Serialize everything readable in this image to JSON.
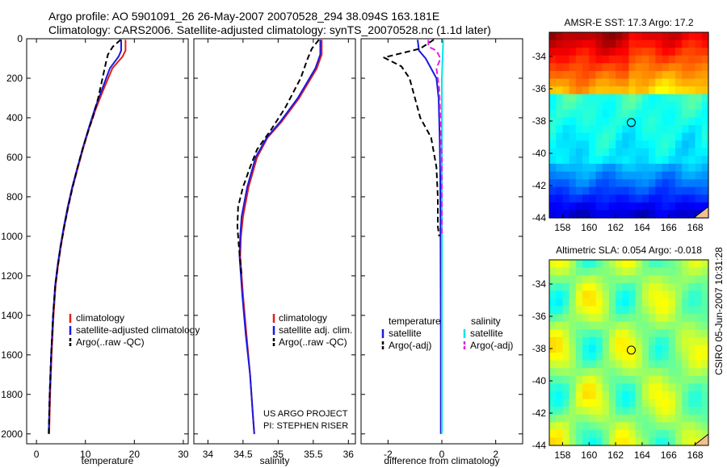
{
  "header": {
    "line1": "Argo profile: AO 5901091_26 26-May-2007 20070528_294 38.094S 163.181E",
    "line2": "Climatology: CARS2006. Satellite-adjusted climatology: synTS_20070528.nc (1.1d later)"
  },
  "colors": {
    "climatology": "#e02020",
    "satellite": "#1a1ae0",
    "argo": "#000000",
    "sat_salinity": "#00e5ee",
    "argo_adj_salinity": "#e020e0"
  },
  "chart_data": [
    {
      "type": "line",
      "id": "temperature",
      "xlabel": "temperature",
      "xlim": [
        -2,
        31
      ],
      "xticks": [
        0,
        10,
        20,
        30
      ],
      "ylim": [
        2050,
        0
      ],
      "yticks": [
        0,
        200,
        400,
        600,
        800,
        1000,
        1200,
        1400,
        1600,
        1800,
        2000
      ],
      "series": [
        {
          "name": "climatology",
          "style": "solid",
          "color_key": "climatology",
          "points": [
            [
              18.2,
              5
            ],
            [
              18.2,
              60
            ],
            [
              17.6,
              90
            ],
            [
              15.5,
              150
            ],
            [
              13.8,
              250
            ],
            [
              12.2,
              350
            ],
            [
              10.8,
              450
            ],
            [
              9.6,
              550
            ],
            [
              8.5,
              650
            ],
            [
              7.4,
              750
            ],
            [
              6.5,
              850
            ],
            [
              5.7,
              950
            ],
            [
              5.0,
              1050
            ],
            [
              4.4,
              1150
            ],
            [
              3.9,
              1250
            ],
            [
              3.5,
              1400
            ],
            [
              3.1,
              1600
            ],
            [
              2.8,
              1800
            ],
            [
              2.6,
              2000
            ]
          ]
        },
        {
          "name": "satellite-adjusted climatology",
          "style": "solid",
          "color_key": "satellite",
          "points": [
            [
              17.3,
              5
            ],
            [
              17.3,
              60
            ],
            [
              16.8,
              90
            ],
            [
              15.0,
              150
            ],
            [
              13.5,
              250
            ],
            [
              12.0,
              350
            ],
            [
              10.7,
              450
            ],
            [
              9.5,
              550
            ],
            [
              8.4,
              650
            ],
            [
              7.3,
              750
            ],
            [
              6.4,
              850
            ],
            [
              5.6,
              950
            ],
            [
              4.9,
              1050
            ],
            [
              4.3,
              1150
            ],
            [
              3.8,
              1250
            ],
            [
              3.4,
              1400
            ],
            [
              3.0,
              1600
            ],
            [
              2.7,
              1800
            ],
            [
              2.5,
              2000
            ]
          ]
        },
        {
          "name": "Argo(..raw -QC)",
          "style": "dashed",
          "color_key": "argo",
          "points": [
            [
              17.2,
              5
            ],
            [
              15.6,
              40
            ],
            [
              14.6,
              80
            ],
            [
              14.2,
              120
            ],
            [
              13.5,
              200
            ],
            [
              12.6,
              300
            ],
            [
              11.5,
              400
            ],
            [
              10.4,
              480
            ],
            [
              9.4,
              560
            ],
            [
              8.3,
              660
            ],
            [
              7.3,
              760
            ],
            [
              6.4,
              860
            ],
            [
              5.6,
              960
            ],
            [
              4.9,
              1060
            ],
            [
              4.3,
              1160
            ],
            [
              3.8,
              1260
            ],
            [
              3.4,
              1400
            ],
            [
              3.0,
              1600
            ],
            [
              2.7,
              1800
            ],
            [
              2.5,
              2000
            ]
          ]
        }
      ],
      "legend": {
        "position": "lower-right",
        "entries": [
          "climatology",
          "satellite-adjusted climatology",
          "Argo(..raw -QC)"
        ]
      }
    },
    {
      "type": "line",
      "id": "salinity",
      "xlabel": "salinity",
      "xlim": [
        33.8,
        36.1
      ],
      "xticks": [
        34,
        34.5,
        35,
        35.5,
        36
      ],
      "ylim": [
        2050,
        0
      ],
      "series": [
        {
          "name": "climatology",
          "style": "solid",
          "color_key": "climatology",
          "points": [
            [
              35.62,
              5
            ],
            [
              35.62,
              80
            ],
            [
              35.55,
              150
            ],
            [
              35.3,
              300
            ],
            [
              35.05,
              420
            ],
            [
              34.85,
              500
            ],
            [
              34.7,
              600
            ],
            [
              34.58,
              750
            ],
            [
              34.5,
              900
            ],
            [
              34.47,
              1000
            ],
            [
              34.46,
              1100
            ],
            [
              34.5,
              1300
            ],
            [
              34.55,
              1500
            ],
            [
              34.6,
              1700
            ],
            [
              34.64,
              1900
            ],
            [
              34.66,
              2000
            ]
          ]
        },
        {
          "name": "satellite adj. clim.",
          "style": "solid",
          "color_key": "satellite",
          "points": [
            [
              35.6,
              5
            ],
            [
              35.6,
              80
            ],
            [
              35.53,
              150
            ],
            [
              35.28,
              300
            ],
            [
              35.03,
              420
            ],
            [
              34.84,
              500
            ],
            [
              34.68,
              600
            ],
            [
              34.56,
              750
            ],
            [
              34.48,
              900
            ],
            [
              34.46,
              1000
            ],
            [
              34.45,
              1100
            ],
            [
              34.49,
              1300
            ],
            [
              34.54,
              1500
            ],
            [
              34.6,
              1700
            ],
            [
              34.64,
              1900
            ],
            [
              34.66,
              2000
            ]
          ]
        },
        {
          "name": "Argo(..raw -QC)",
          "style": "dashed",
          "color_key": "argo",
          "points": [
            [
              35.58,
              5
            ],
            [
              35.48,
              50
            ],
            [
              35.42,
              100
            ],
            [
              35.32,
              200
            ],
            [
              35.1,
              350
            ],
            [
              34.9,
              460
            ],
            [
              34.7,
              560
            ],
            [
              34.6,
              650
            ],
            [
              34.5,
              750
            ],
            [
              34.43,
              850
            ],
            [
              34.42,
              950
            ],
            [
              34.44,
              1050
            ],
            [
              34.48,
              1200
            ]
          ]
        }
      ],
      "legend": {
        "position": "lower-right",
        "entries": [
          "climatology",
          "satellite adj. clim.",
          "Argo(..raw -QC)"
        ]
      },
      "annotation": [
        "US ARGO PROJECT",
        "PI: STEPHEN RISER"
      ]
    },
    {
      "type": "line",
      "id": "difference",
      "xlabel": "difference from climatology",
      "xlim": [
        -3,
        3
      ],
      "xticks": [
        -2,
        0,
        2
      ],
      "ylim": [
        2050,
        0
      ],
      "series": [
        {
          "name": "temperature satellite",
          "style": "solid",
          "color_key": "satellite",
          "points": [
            [
              -0.9,
              5
            ],
            [
              -0.85,
              60
            ],
            [
              -0.6,
              100
            ],
            [
              -0.2,
              200
            ],
            [
              -0.12,
              300
            ],
            [
              -0.08,
              500
            ],
            [
              -0.06,
              700
            ],
            [
              -0.05,
              1000
            ],
            [
              -0.04,
              1500
            ],
            [
              -0.04,
              2000
            ]
          ]
        },
        {
          "name": "temperature Argo(-adj)",
          "style": "dashed",
          "color_key": "argo",
          "points": [
            [
              -0.3,
              5
            ],
            [
              -0.8,
              50
            ],
            [
              -2.15,
              95
            ],
            [
              -1.5,
              140
            ],
            [
              -1.2,
              200
            ],
            [
              -1.0,
              300
            ],
            [
              -0.8,
              400
            ],
            [
              -0.4,
              500
            ],
            [
              -0.2,
              650
            ],
            [
              -0.15,
              800
            ],
            [
              -0.15,
              950
            ],
            [
              -0.1,
              1000
            ]
          ]
        },
        {
          "name": "salinity satellite",
          "style": "solid",
          "color_key": "sat_salinity",
          "points": [
            [
              0.05,
              5
            ],
            [
              0.0,
              200
            ],
            [
              0.0,
              1000
            ],
            [
              0.0,
              2000
            ]
          ]
        },
        {
          "name": "salinity Argo(-adj)",
          "style": "dashed",
          "color_key": "argo_adj_salinity",
          "points": [
            [
              -0.5,
              5
            ],
            [
              -0.5,
              40
            ],
            [
              -0.2,
              60
            ],
            [
              -0.05,
              100
            ],
            [
              -0.2,
              150
            ],
            [
              -0.1,
              250
            ],
            [
              -0.05,
              400
            ],
            [
              0.0,
              600
            ],
            [
              0.0,
              800
            ],
            [
              0.0,
              1000
            ]
          ]
        }
      ],
      "legend": {
        "position": "lower-center",
        "col1_title": "temperature",
        "col1_entries": [
          "satellite",
          "Argo(-adj)"
        ],
        "col2_title": "salinity",
        "col2_entries": [
          "satellite",
          "Argo(-adj)"
        ]
      }
    },
    {
      "type": "heatmap",
      "id": "sst-map",
      "title": "AMSR-E SST: 17.3 Argo: 17.2",
      "xlim": [
        157,
        169
      ],
      "ylim": [
        -44,
        -32.5
      ],
      "xticks": [
        158,
        160,
        162,
        164,
        166,
        168
      ],
      "yticks": [
        -34,
        -36,
        -38,
        -40,
        -42,
        -44
      ],
      "marker": [
        163.181,
        -38.094
      ]
    },
    {
      "type": "heatmap",
      "id": "sla-map",
      "title": "Altimetric SLA: 0.054 Argo: -0.018",
      "xlim": [
        157,
        169
      ],
      "ylim": [
        -44,
        -32.5
      ],
      "xticks": [
        158,
        160,
        162,
        164,
        166,
        168
      ],
      "yticks": [
        -34,
        -36,
        -38,
        -40,
        -42,
        -44
      ],
      "marker": [
        163.181,
        -38.094
      ]
    }
  ],
  "footer": {
    "side_text": "CSIRO 05-Jun-2007 10:31:28"
  }
}
